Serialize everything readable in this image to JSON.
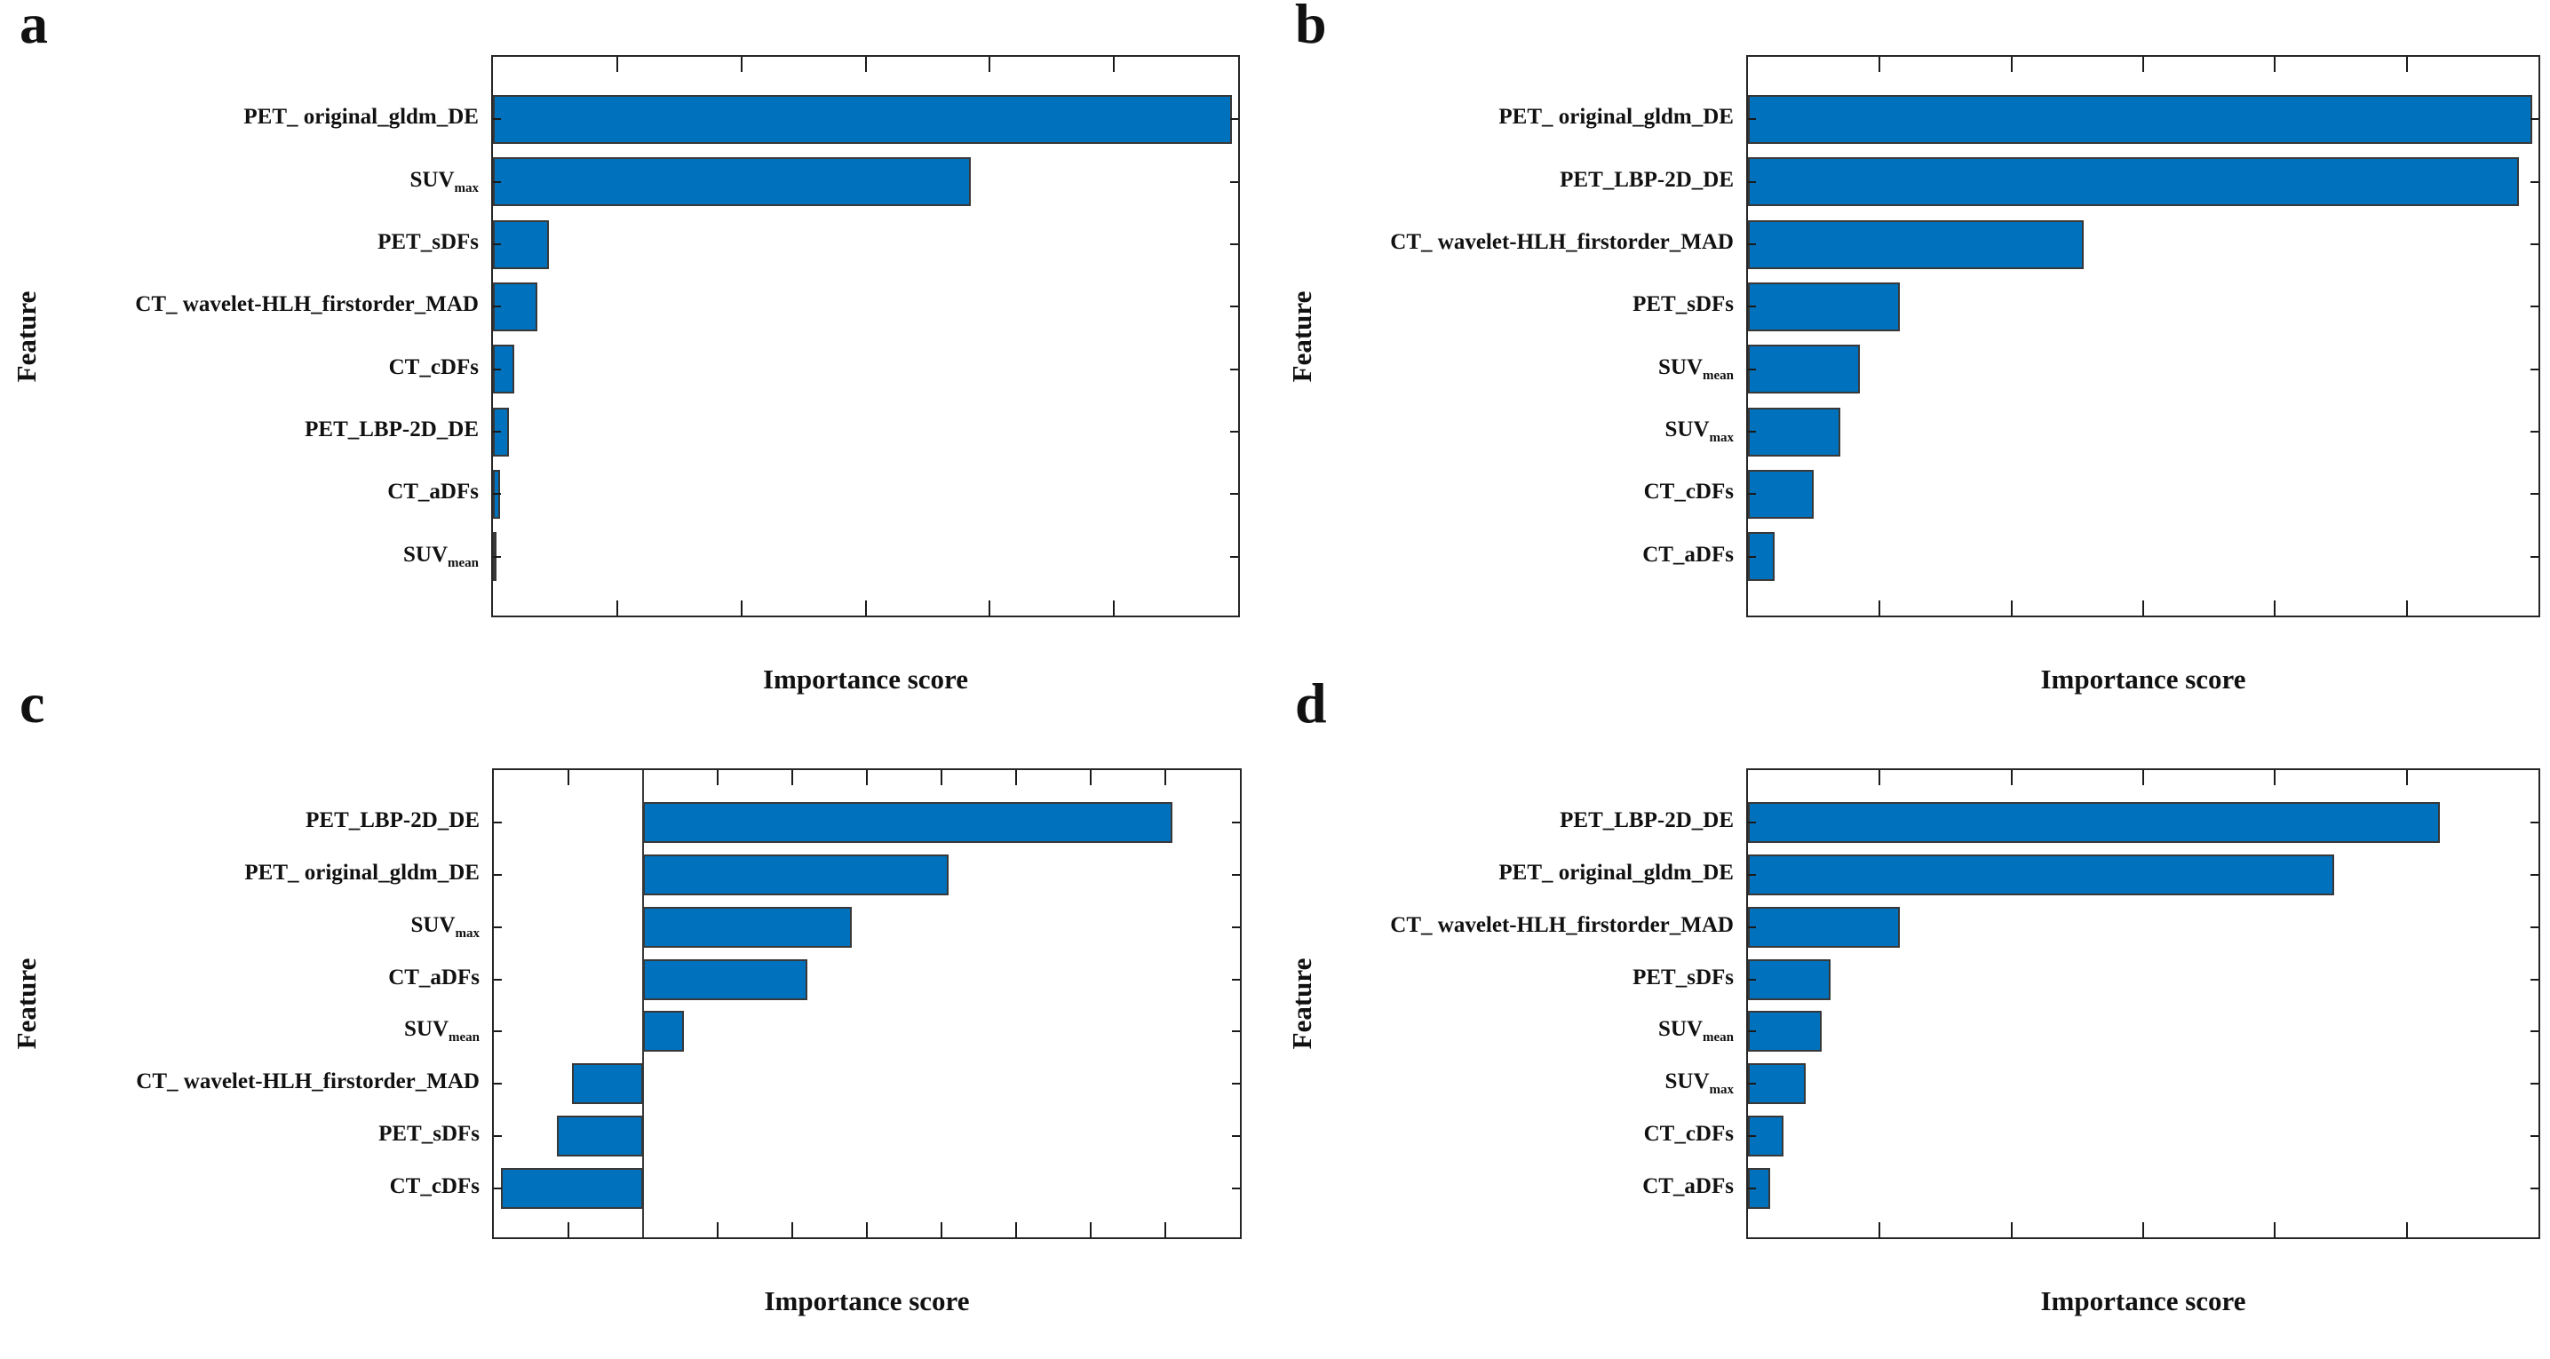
{
  "figure": {
    "background": "#ffffff",
    "bar_color": "#0071BC",
    "bar_edge_color": "#383838",
    "axis_color": "#262626",
    "panel_letters": [
      "a",
      "b",
      "c",
      "d"
    ]
  },
  "chart_data": [
    {
      "type": "bar",
      "orientation": "horizontal",
      "panel": "a",
      "xlabel": "Importance score",
      "ylabel": "Feature",
      "xlim": [
        0,
        6
      ],
      "x_tick_interval": 1,
      "x_tick_labels": "none",
      "zero_line": false,
      "value_units": "axis ticks (unlabeled)",
      "categories": [
        {
          "text": "PET_ original_gldm_DE"
        },
        {
          "text": "SUV",
          "sub": "max"
        },
        {
          "text": "PET_sDFs"
        },
        {
          "text": "CT_ wavelet-HLH_firstorder_MAD"
        },
        {
          "text": "CT_cDFs"
        },
        {
          "text": "PET_LBP-2D_DE"
        },
        {
          "text": "CT_aDFs"
        },
        {
          "text": "SUV",
          "sub": "mean"
        }
      ],
      "values": [
        5.95,
        3.85,
        0.45,
        0.36,
        0.17,
        0.13,
        0.06,
        0.03
      ]
    },
    {
      "type": "bar",
      "orientation": "horizontal",
      "panel": "b",
      "xlabel": "Importance score",
      "ylabel": "Feature",
      "xlim": [
        0,
        6
      ],
      "x_tick_interval": 1,
      "x_tick_labels": "none",
      "zero_line": false,
      "value_units": "axis ticks (unlabeled)",
      "categories": [
        {
          "text": "PET_ original_gldm_DE"
        },
        {
          "text": "PET_LBP-2D_DE"
        },
        {
          "text": "CT_ wavelet-HLH_firstorder_MAD"
        },
        {
          "text": "PET_sDFs"
        },
        {
          "text": "SUV",
          "sub": "mean"
        },
        {
          "text": "SUV",
          "sub": "max"
        },
        {
          "text": "CT_cDFs"
        },
        {
          "text": "CT_aDFs"
        }
      ],
      "values": [
        5.95,
        5.85,
        2.55,
        1.15,
        0.85,
        0.7,
        0.5,
        0.2
      ]
    },
    {
      "type": "bar",
      "orientation": "horizontal",
      "panel": "c",
      "xlabel": "Importance score",
      "ylabel": "Feature",
      "xlim": [
        -2,
        8
      ],
      "x_tick_interval": 1,
      "x_tick_labels": "none",
      "zero_line": true,
      "value_units": "axis ticks (unlabeled)",
      "categories": [
        {
          "text": "PET_LBP-2D_DE"
        },
        {
          "text": "PET_ original_gldm_DE"
        },
        {
          "text": "SUV",
          "sub": "max"
        },
        {
          "text": "CT_aDFs"
        },
        {
          "text": "SUV",
          "sub": "mean"
        },
        {
          "text": "CT_ wavelet-HLH_firstorder_MAD"
        },
        {
          "text": "PET_sDFs"
        },
        {
          "text": "CT_cDFs"
        }
      ],
      "values": [
        7.1,
        4.1,
        2.8,
        2.2,
        0.55,
        -0.95,
        -1.15,
        -1.9
      ]
    },
    {
      "type": "bar",
      "orientation": "horizontal",
      "panel": "d",
      "xlabel": "Importance score",
      "ylabel": "Feature",
      "xlim": [
        0,
        6
      ],
      "x_tick_interval": 1,
      "x_tick_labels": "none",
      "zero_line": false,
      "value_units": "axis ticks (unlabeled)",
      "categories": [
        {
          "text": "PET_LBP-2D_DE"
        },
        {
          "text": "PET_ original_gldm_DE"
        },
        {
          "text": "CT_ wavelet-HLH_firstorder_MAD"
        },
        {
          "text": "PET_sDFs"
        },
        {
          "text": "SUV",
          "sub": "mean"
        },
        {
          "text": "SUV",
          "sub": "max"
        },
        {
          "text": "CT_cDFs"
        },
        {
          "text": "CT_aDFs"
        }
      ],
      "values": [
        5.25,
        4.45,
        1.15,
        0.63,
        0.56,
        0.44,
        0.27,
        0.17
      ]
    }
  ]
}
